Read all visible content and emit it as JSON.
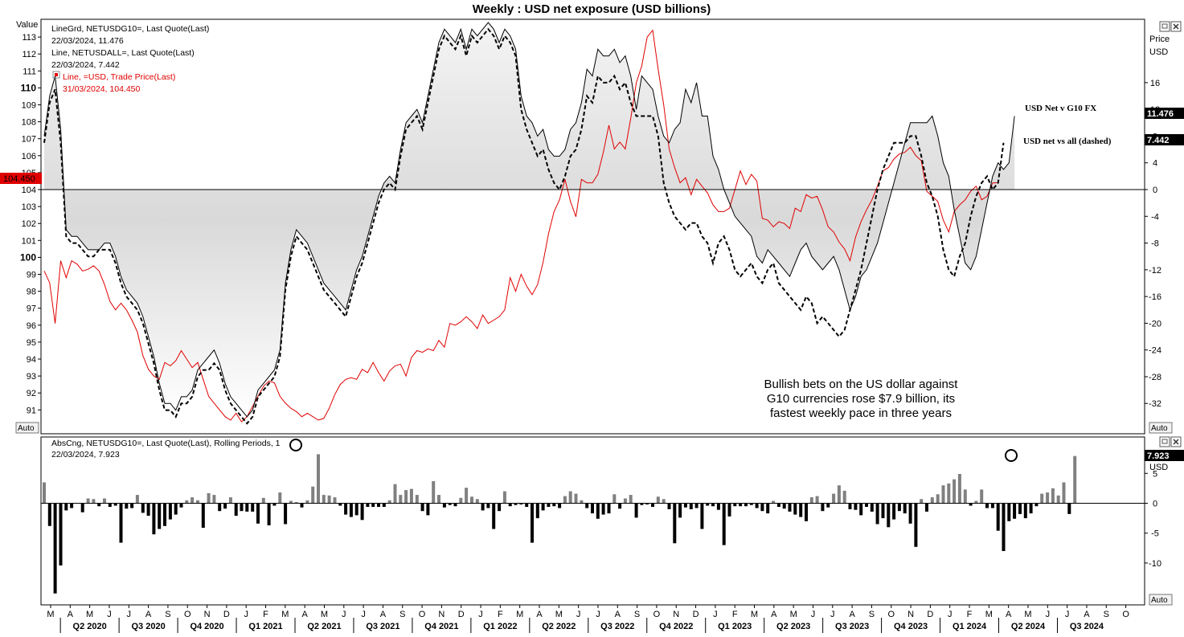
{
  "window": {
    "title": "Weekly : USD net exposure (USD billions)",
    "auto_label": "Auto",
    "left_axis_header": "Value",
    "right_axis_header_1": "Price",
    "right_axis_header_2": "USD"
  },
  "upper_legend": [
    {
      "line1": "LineGrd, NETUSDG10=, Last Quote(Last)",
      "line2": "22/03/2024, 11.476",
      "color": "#000000"
    },
    {
      "line1": "Line, NETUSDALL=, Last Quote(Last)",
      "line2": "22/03/2024, 7.442",
      "color": "#000000"
    },
    {
      "line1": "Line, =USD, Trade Price(Last)",
      "line2": "31/03/2024, 104.450",
      "color": "#e00000"
    }
  ],
  "annotations": {
    "g10_label": "USD Net v G10 FX",
    "all_label": "USD net vs all (dashed)",
    "note_line1": "Bullish bets on the US dollar against",
    "note_line2": "G10 currencies rose $7.9 billion, its",
    "note_line3": "fastest weekly pace in three years"
  },
  "price_badges": {
    "left_dxy": "104.450",
    "right_g10": "11.476",
    "right_all": "7.442",
    "lower_right": "7.923"
  },
  "lower_legend": {
    "line1": "AbsCng, NETUSDG10=, Last Quote(Last), Rolling Periods, 1",
    "line2": "22/03/2024, 7.923"
  },
  "x_axis": {
    "months": [
      "M",
      "A",
      "M",
      "J",
      "J",
      "A",
      "S",
      "O",
      "N",
      "D",
      "J",
      "F",
      "M",
      "A",
      "M",
      "J",
      "J",
      "A",
      "S",
      "O",
      "N",
      "D",
      "J",
      "F",
      "M",
      "A",
      "M",
      "J",
      "J",
      "A",
      "S",
      "O",
      "N",
      "D",
      "J",
      "F",
      "M",
      "A",
      "M",
      "J",
      "J",
      "A",
      "S",
      "O",
      "N",
      "D",
      "J",
      "F",
      "M",
      "A",
      "M",
      "J",
      "J",
      "A",
      "S",
      "O"
    ],
    "quarters": [
      "Q2 2020",
      "Q3 2020",
      "Q4 2020",
      "Q1 2021",
      "Q2 2021",
      "Q3 2021",
      "Q4 2021",
      "Q1 2022",
      "Q2 2022",
      "Q3 2022",
      "Q4 2022",
      "Q1 2023",
      "Q2 2023",
      "Q3 2023",
      "Q4 2023",
      "Q1 2024",
      "Q2 2024",
      "Q3 2024"
    ]
  },
  "chart_data": [
    {
      "type": "line",
      "title": "Weekly : USD net exposure (USD billions)",
      "x_range": [
        "2020-03",
        "2024-10"
      ],
      "left_axis": {
        "label": "Value",
        "range": [
          90,
          113.5
        ],
        "ticks": [
          91,
          92,
          93,
          94,
          95,
          96,
          97,
          98,
          99,
          100,
          101,
          102,
          103,
          104,
          105,
          106,
          107,
          108,
          109,
          110,
          111,
          112,
          113
        ],
        "bold_ticks": [
          100,
          110
        ]
      },
      "right_axis": {
        "label": "Price USD",
        "range": [
          -36,
          24
        ],
        "ticks": [
          -32,
          -28,
          -24,
          -20,
          -16,
          -12,
          -8,
          -4,
          0,
          4,
          8,
          12,
          16
        ]
      },
      "series": [
        {
          "name": "LineGrd, NETUSDG10=, Last Quote(Last)",
          "axis": "right",
          "style": "solid-black-filled-to-zero",
          "values": [
            8,
            14,
            17,
            9,
            -6,
            -7,
            -7,
            -8,
            -9,
            -9,
            -9,
            -8,
            -8,
            -10,
            -13,
            -15,
            -16,
            -17,
            -19,
            -22,
            -25,
            -29,
            -32,
            -32,
            -33,
            -31,
            -31,
            -30,
            -27,
            -26,
            -25,
            -24,
            -26,
            -29,
            -31,
            -32,
            -33,
            -34,
            -33,
            -30,
            -29,
            -28,
            -27,
            -24,
            -14,
            -9,
            -6,
            -7,
            -8,
            -10,
            -12,
            -14,
            -15,
            -16,
            -17,
            -18,
            -15,
            -12,
            -10,
            -7,
            -4,
            -1,
            1,
            2,
            1,
            6,
            10,
            11,
            12,
            10,
            14,
            18,
            22,
            24,
            23,
            22,
            24,
            21,
            24,
            23,
            24,
            25,
            24,
            22,
            24,
            23,
            21,
            14,
            11,
            10,
            8,
            9,
            6,
            5,
            5,
            6,
            9,
            10,
            13,
            18,
            17,
            21,
            20,
            20,
            21,
            19,
            20,
            17,
            12,
            17,
            16,
            15,
            11,
            8,
            7,
            9,
            10,
            15,
            13,
            16,
            11,
            11,
            5,
            3,
            0,
            -2,
            -4,
            -5,
            -6,
            -7,
            -10,
            -11,
            -9,
            -10,
            -11,
            -12,
            -13,
            -11,
            -9,
            -8,
            -10,
            -11,
            -12,
            -11,
            -10,
            -12,
            -15,
            -18,
            -16,
            -13,
            -12,
            -10,
            -8,
            -5,
            -2,
            1,
            4,
            7,
            10,
            10,
            10,
            10,
            11,
            8,
            4,
            2,
            -3,
            -7,
            -11,
            -12,
            -10,
            -6,
            -2,
            2,
            4,
            3,
            4,
            11
          ]
        },
        {
          "name": "Line, NETUSDALL=, Last Quote(Last)",
          "axis": "right",
          "style": "dashed-black",
          "values": [
            7,
            13,
            15,
            7,
            -7,
            -8,
            -8,
            -9,
            -10,
            -10,
            -9,
            -9,
            -9,
            -11,
            -14,
            -16,
            -17,
            -18,
            -20,
            -23,
            -26,
            -30,
            -33,
            -33,
            -34,
            -32,
            -32,
            -31,
            -28,
            -27,
            -27,
            -26,
            -27,
            -30,
            -32,
            -33,
            -34,
            -35,
            -34,
            -31,
            -30,
            -29,
            -28,
            -25,
            -15,
            -10,
            -7,
            -8,
            -9,
            -11,
            -13,
            -15,
            -16,
            -17,
            -18,
            -19,
            -16,
            -13,
            -11,
            -8,
            -5,
            -2,
            0,
            1,
            0,
            5,
            9,
            10,
            11,
            9,
            13,
            17,
            21,
            23,
            22,
            21,
            23,
            20,
            23,
            22,
            23,
            24,
            23,
            21,
            23,
            22,
            20,
            12,
            9,
            7,
            5,
            6,
            3,
            1,
            0,
            2,
            5,
            6,
            9,
            14,
            13,
            17,
            16,
            16,
            17,
            15,
            16,
            13,
            11,
            11,
            11,
            11,
            8,
            1,
            -2,
            -4,
            -5,
            -6,
            -5,
            -5,
            -7,
            -8,
            -11,
            -8,
            -7,
            -9,
            -12,
            -13,
            -12,
            -11,
            -13,
            -14,
            -12,
            -11,
            -14,
            -15,
            -16,
            -17,
            -18,
            -16,
            -17,
            -20,
            -19,
            -20,
            -21,
            -22,
            -21,
            -18,
            -15,
            -12,
            -8,
            -4,
            0,
            3,
            5,
            7,
            7,
            7,
            8,
            8,
            5,
            1,
            -1,
            -4,
            -9,
            -12,
            -13,
            -10,
            -8,
            -4,
            -1,
            1,
            2,
            0,
            1,
            7
          ]
        },
        {
          "name": "Line, =USD, Trade Price(Last)",
          "axis": "left",
          "style": "solid-red",
          "values": [
            99.2,
            98.5,
            96.1,
            99.8,
            98.8,
            99.8,
            99.6,
            99.2,
            99.3,
            99.5,
            99.2,
            98.4,
            97.4,
            96.9,
            97.3,
            96.9,
            96.3,
            95.6,
            94.2,
            93.4,
            93.0,
            92.8,
            93.8,
            93.6,
            93.9,
            94.5,
            94.0,
            93.5,
            93.8,
            92.8,
            91.8,
            91.4,
            91.0,
            90.6,
            90.4,
            90.8,
            90.3,
            90.6,
            91.2,
            91.8,
            92.4,
            92.7,
            92.6,
            91.8,
            91.4,
            91.1,
            90.9,
            90.6,
            90.8,
            90.6,
            90.4,
            90.5,
            91.1,
            91.9,
            92.5,
            92.8,
            92.9,
            92.8,
            93.4,
            93.2,
            93.8,
            93.2,
            92.7,
            93.3,
            93.6,
            93.7,
            93.0,
            94.1,
            94.5,
            94.4,
            94.6,
            94.5,
            95.1,
            94.7,
            96.1,
            96.0,
            96.2,
            96.5,
            96.2,
            95.8,
            96.6,
            96.1,
            96.3,
            96.5,
            96.9,
            98.8,
            98.0,
            99.0,
            98.3,
            97.8,
            98.4,
            99.7,
            101.4,
            102.7,
            103.4,
            104.6,
            103.3,
            102.4,
            104.6,
            104.4,
            104.4,
            104.9,
            106.2,
            107.8,
            106.4,
            106.8,
            106.4,
            108.2,
            110.3,
            111.3,
            113.0,
            113.4,
            111.1,
            109.0,
            106.4,
            105.3,
            104.4,
            104.7,
            103.7,
            104.6,
            104.2,
            103.8,
            103.1,
            102.7,
            102.7,
            102.9,
            104.0,
            105.1,
            104.3,
            104.9,
            104.5,
            102.3,
            102.2,
            101.8,
            102.1,
            102.0,
            101.7,
            102.9,
            102.7,
            103.7,
            103.5,
            103.6,
            102.8,
            101.8,
            101.5,
            100.9,
            100.5,
            99.8,
            101.2,
            102.1,
            102.8,
            103.4,
            104.2,
            105.1,
            105.3,
            105.8,
            106.1,
            106.2,
            106.5,
            106.0,
            105.7,
            103.9,
            103.6,
            103.3,
            102.2,
            101.5,
            102.7,
            103.1,
            103.4,
            103.9,
            104.2,
            103.4,
            103.6,
            104.4,
            104.4
          ]
        }
      ]
    },
    {
      "type": "bar",
      "title": "AbsCng, NETUSDG10=, Last Quote(Last), Rolling Periods, 1",
      "x_range": [
        "2020-03",
        "2024-10"
      ],
      "axis": {
        "label": "USD",
        "range": [
          -17,
          11
        ],
        "ticks": [
          -10,
          -5,
          0,
          5
        ]
      },
      "highlight_value": 7.923,
      "series": [
        {
          "name": "AbsCng",
          "values": [
            3.5,
            -3.8,
            -15.1,
            -10.4,
            -1.2,
            -0.8,
            0,
            -1.5,
            0.8,
            0.7,
            -0.5,
            0.8,
            -0.6,
            -0.4,
            -6.6,
            -0.9,
            -0.8,
            1.4,
            -1.6,
            -2.1,
            -5.2,
            -4.3,
            -3.8,
            -2.7,
            -1.9,
            -0.7,
            0.5,
            1.0,
            0.5,
            -4.1,
            1.7,
            1.4,
            -1.3,
            -0.9,
            1.0,
            -2.1,
            -1.3,
            -1.4,
            -1.4,
            -3.4,
            0.9,
            -3.7,
            -0.4,
            1.8,
            -3.5,
            0.4,
            0.2,
            -0.7,
            0.5,
            2.8,
            8.2,
            1.4,
            1.3,
            1.0,
            -0.4,
            -1.9,
            -2.3,
            -2.0,
            -2.8,
            -0.6,
            -0.6,
            -0.6,
            -0.6,
            0.5,
            3.2,
            1.4,
            2.2,
            2.4,
            1.4,
            -1.3,
            -2.0,
            3.7,
            1.4,
            -0.7,
            -0.3,
            -0.5,
            0.9,
            2.6,
            1.1,
            0.7,
            -1.2,
            -0.8,
            -4.3,
            -1.3,
            2.0,
            -0.5,
            -0.3,
            -0.2,
            -0.6,
            -6.6,
            -2.5,
            -1.2,
            -0.6,
            -0.5,
            -0.8,
            1.2,
            2.0,
            1.6,
            0.5,
            -0.8,
            -1.7,
            -2.6,
            -1.9,
            -1.7,
            1.5,
            -0.9,
            0.8,
            1.4,
            -2.4,
            -0.3,
            -0.2,
            -0.6,
            1.1,
            0.7,
            -1.0,
            -6.7,
            -2.4,
            -0.7,
            -1.0,
            -0.8,
            -4.3,
            -0.4,
            -0.5,
            -1.1,
            -7.0,
            -2.2,
            -0.5,
            -0.5,
            -0.5,
            -0.3,
            -0.8,
            -1.3,
            -1.7,
            0.4,
            -0.6,
            -0.9,
            -1.4,
            -1.9,
            -2.3,
            -3.0,
            1.0,
            1.2,
            -1.3,
            -0.7,
            1.6,
            3.0,
            2.1,
            -1.0,
            -1.1,
            -2.0,
            -0.6,
            -1.4,
            -3.5,
            -2.5,
            -4.0,
            -2.7,
            -1.3,
            -1.7,
            -3.4,
            -7.3,
            0.7,
            -1.4,
            1.0,
            1.5,
            3.0,
            3.3,
            4.0,
            4.9,
            2.3,
            -0.4,
            0.4,
            2.3,
            -0.8,
            -0.8,
            -4.6,
            -8.0,
            -3.0,
            -2.6,
            -1.8,
            -2.5,
            -1.7,
            -0.5,
            1.6,
            1.8,
            2.5,
            1.3,
            3.5,
            -1.8,
            7.9
          ]
        }
      ]
    }
  ]
}
